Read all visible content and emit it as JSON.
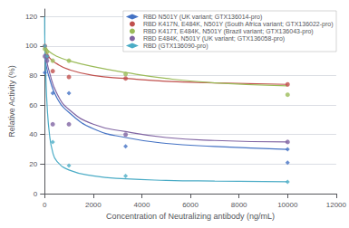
{
  "chart_data": {
    "type": "scatter",
    "xlabel": "Concentration of Neutralizing antibody (ng/mL)",
    "ylabel": "Relative Activity (%)",
    "xlim": [
      0,
      12000
    ],
    "ylim": [
      0,
      125
    ],
    "xticks": [
      0,
      2000,
      4000,
      6000,
      8000,
      10000,
      12000
    ],
    "yticks": [
      0,
      20,
      40,
      60,
      80,
      100,
      120
    ],
    "grid": "y",
    "legend": "upper right",
    "series": [
      {
        "name": "RBD N501Y (UK variant; GTX136014-pro)",
        "color": "#4472c4",
        "marker": "diamond",
        "points": [
          [
            10,
            82
          ],
          [
            100,
            92
          ],
          [
            333,
            68
          ],
          [
            1000,
            68
          ],
          [
            3333,
            32
          ],
          [
            10000,
            21
          ],
          [
            10000,
            30
          ]
        ],
        "curve": [
          [
            1,
            95
          ],
          [
            50,
            88
          ],
          [
            200,
            78
          ],
          [
            500,
            65
          ],
          [
            1000,
            55
          ],
          [
            2000,
            44
          ],
          [
            3333,
            38
          ],
          [
            5000,
            34
          ],
          [
            7000,
            32
          ],
          [
            10000,
            30
          ]
        ]
      },
      {
        "name": "RBD K417N, E484K, N501Y (South Africa variant; GTX136022-pro)",
        "color": "#c0504d",
        "marker": "circle",
        "points": [
          [
            10,
            100
          ],
          [
            100,
            93
          ],
          [
            333,
            83
          ],
          [
            1000,
            79
          ],
          [
            3333,
            78
          ],
          [
            10000,
            74
          ]
        ],
        "curve": [
          [
            1,
            100
          ],
          [
            50,
            97
          ],
          [
            200,
            92
          ],
          [
            500,
            88
          ],
          [
            1000,
            84
          ],
          [
            2000,
            80
          ],
          [
            3333,
            78
          ],
          [
            5000,
            76
          ],
          [
            7000,
            75
          ],
          [
            10000,
            74
          ]
        ]
      },
      {
        "name": "RBD K417T, E484K, N501Y (Brazil variant; GTX136043-pro)",
        "color": "#9bbb59",
        "marker": "circle",
        "points": [
          [
            10,
            98
          ],
          [
            100,
            96
          ],
          [
            333,
            90
          ],
          [
            1000,
            90
          ],
          [
            3333,
            81
          ],
          [
            10000,
            67
          ]
        ],
        "curve": [
          [
            1,
            100
          ],
          [
            50,
            99
          ],
          [
            200,
            96
          ],
          [
            500,
            93
          ],
          [
            1000,
            90
          ],
          [
            2000,
            86
          ],
          [
            3333,
            82
          ],
          [
            5000,
            78
          ],
          [
            7000,
            75
          ],
          [
            10000,
            73
          ]
        ]
      },
      {
        "name": "RBD E484K, N501Y (UK variant; GTX136058-pro)",
        "color": "#8064a2",
        "marker": "circle",
        "points": [
          [
            10,
            93
          ],
          [
            100,
            90
          ],
          [
            333,
            47
          ],
          [
            1000,
            47
          ],
          [
            3333,
            40
          ],
          [
            10000,
            35
          ]
        ],
        "curve": [
          [
            1,
            99
          ],
          [
            50,
            93
          ],
          [
            200,
            82
          ],
          [
            500,
            68
          ],
          [
            1000,
            57
          ],
          [
            2000,
            47
          ],
          [
            3333,
            42
          ],
          [
            5000,
            38
          ],
          [
            7000,
            36
          ],
          [
            10000,
            35
          ]
        ]
      },
      {
        "name": "RBD (GTX136090-pro)",
        "color": "#4bacc6",
        "marker": "diamond",
        "points": [
          [
            10,
            100
          ],
          [
            100,
            93
          ],
          [
            333,
            35
          ],
          [
            1000,
            19
          ],
          [
            3333,
            12
          ],
          [
            10000,
            8
          ]
        ],
        "curve": [
          [
            1,
            120
          ],
          [
            10,
            100
          ],
          [
            50,
            80
          ],
          [
            100,
            60
          ],
          [
            200,
            40
          ],
          [
            333,
            28
          ],
          [
            500,
            22
          ],
          [
            1000,
            16
          ],
          [
            2000,
            12
          ],
          [
            3333,
            10
          ],
          [
            5000,
            9
          ],
          [
            7000,
            8.5
          ],
          [
            10000,
            8
          ]
        ]
      }
    ]
  }
}
